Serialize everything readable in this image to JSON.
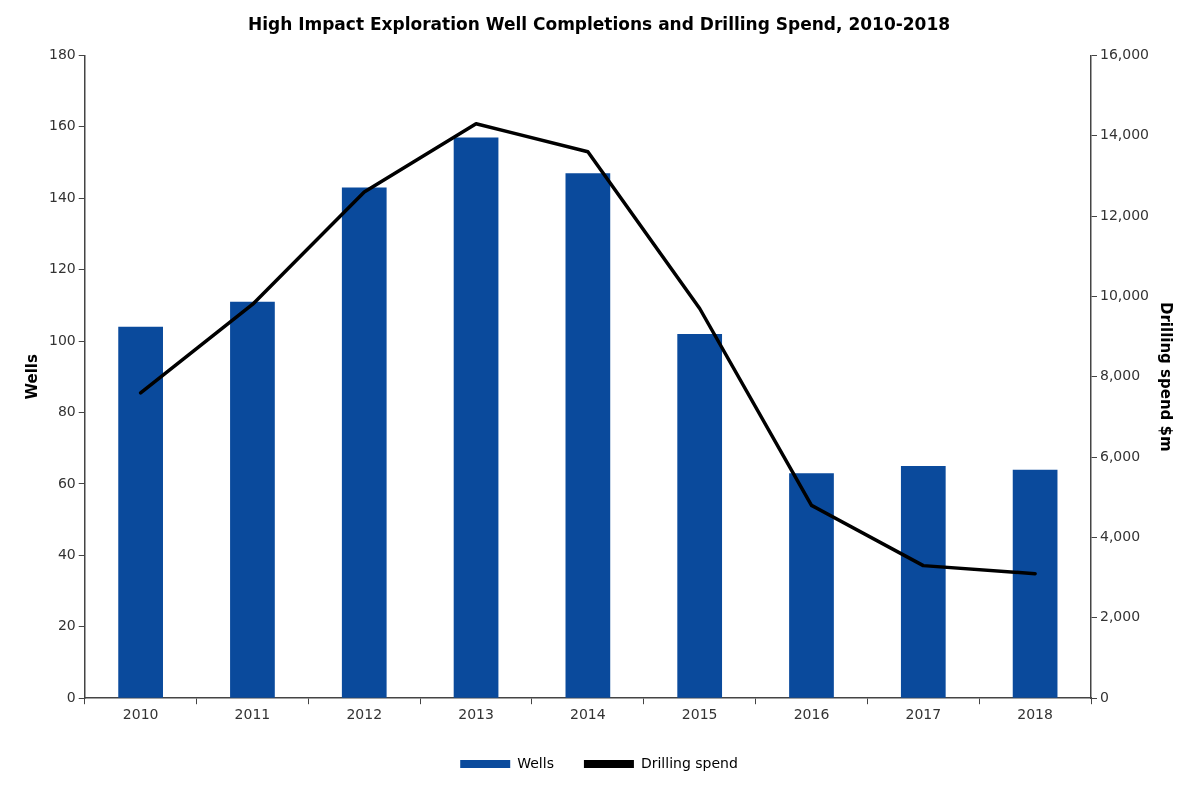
{
  "chart_data": {
    "type": "bar",
    "title": "High Impact Exploration Well Completions and Drilling Spend, 2010-2018",
    "ylabel": "Wells",
    "y2label": "Drilling spend $m",
    "categories": [
      "2010",
      "2011",
      "2012",
      "2013",
      "2014",
      "2015",
      "2016",
      "2017",
      "2018"
    ],
    "series": [
      {
        "name": "Wells",
        "type": "bar",
        "color": "#0a4a9c",
        "values": [
          104,
          111,
          143,
          157,
          147,
          102,
          63,
          65,
          64
        ]
      },
      {
        "name": "Drilling spend",
        "type": "line",
        "axis": "y2",
        "color": "#000000",
        "values": [
          7600,
          9800,
          12600,
          14300,
          13600,
          9700,
          4800,
          3300,
          3100
        ]
      }
    ],
    "ylim": [
      0,
      180
    ],
    "yticks": [
      0,
      20,
      40,
      60,
      80,
      100,
      120,
      140,
      160,
      180
    ],
    "y2lim": [
      0,
      16000
    ],
    "y2ticks": [
      0,
      {
        "value": 2000,
        "label": "2,000"
      },
      {
        "value": 4000,
        "label": "4,000"
      },
      {
        "value": 6000,
        "label": "6,000"
      },
      {
        "value": 8000,
        "label": "8,000"
      },
      {
        "value": 10000,
        "label": "10,000"
      },
      {
        "value": 12000,
        "label": "12,000"
      },
      {
        "value": 14000,
        "label": "14,000"
      },
      {
        "value": 16000,
        "label": "16,000"
      }
    ],
    "grid": false,
    "legend": "bottom",
    "marker": "none",
    "line_style": "solid"
  }
}
